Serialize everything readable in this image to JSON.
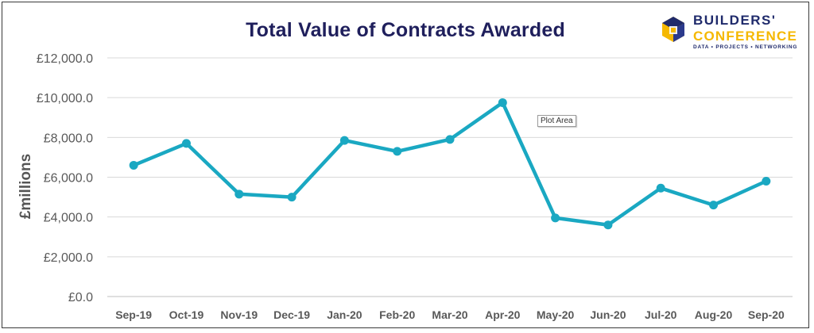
{
  "chart_data": {
    "type": "line",
    "title": "Total Value of Contracts Awarded",
    "xlabel": "",
    "ylabel": "£millions",
    "categories": [
      "Sep-19",
      "Oct-19",
      "Nov-19",
      "Dec-19",
      "Jan-20",
      "Feb-20",
      "Mar-20",
      "Apr-20",
      "May-20",
      "Jun-20",
      "Jul-20",
      "Aug-20",
      "Sep-20"
    ],
    "series": [
      {
        "name": "Total Value of Contracts Awarded",
        "values": [
          6600,
          7700,
          5150,
          5000,
          7850,
          7300,
          7900,
          9750,
          3950,
          3600,
          5450,
          4600,
          5800
        ]
      }
    ],
    "ylim": [
      0,
      12000
    ],
    "yticks": [
      0,
      2000,
      4000,
      6000,
      8000,
      10000,
      12000
    ],
    "ytick_labels": [
      "£0.0",
      "£2,000.0",
      "£4,000.0",
      "£6,000.0",
      "£8,000.0",
      "£10,000.0",
      "£12,000.0"
    ],
    "grid": true,
    "legend": "none",
    "line_color": "#1aa8c2"
  },
  "tooltip": "Plot Area",
  "logo": {
    "line1": "BUILDERS'",
    "line2": "CONFERENCE",
    "tagline": "DATA • PROJECTS • NETWORKING",
    "navy": "#1f2a6b",
    "gold": "#f5b800"
  }
}
